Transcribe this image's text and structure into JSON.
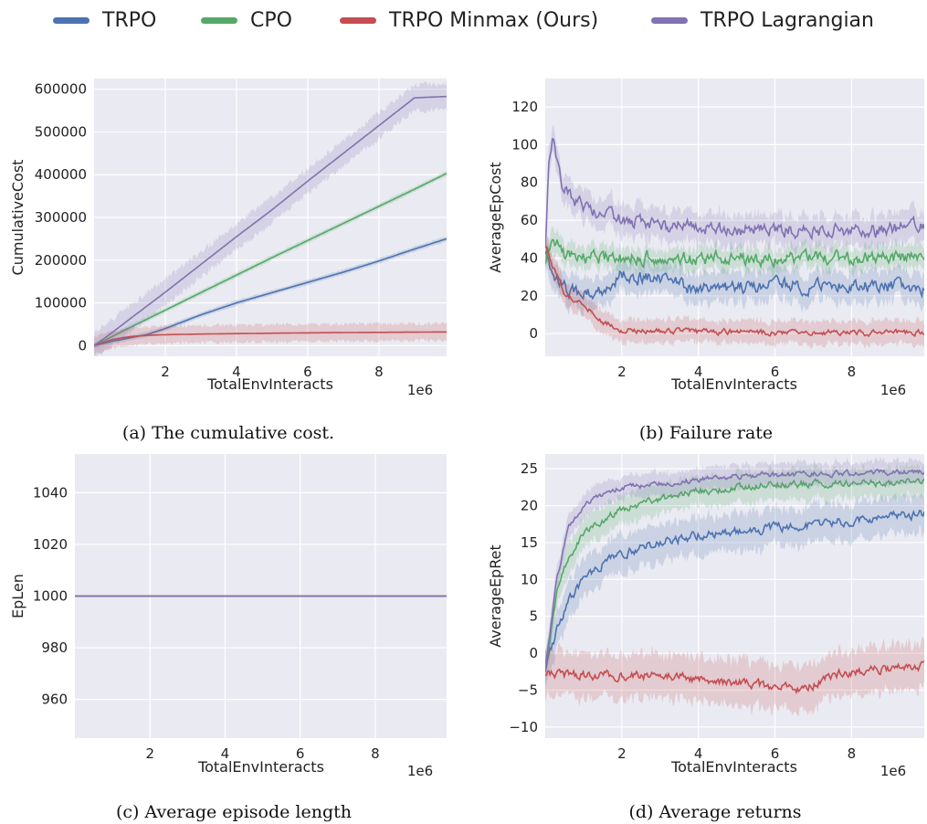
{
  "legend": [
    {
      "name": "TRPO",
      "color": "#4c72b0"
    },
    {
      "name": "CPO",
      "color": "#55a868"
    },
    {
      "name": "TRPO Minmax (Ours)",
      "color": "#c44e52"
    },
    {
      "name": "TRPO Lagrangian",
      "color": "#8172b2"
    }
  ],
  "chart_data": [
    {
      "type": "line",
      "caption": "(a) The cumulative cost.",
      "xlabel": "TotalEnvInteracts",
      "ylabel": "CumulativeCost",
      "x_multiplier": "1e6",
      "xlim": [
        0,
        9.9
      ],
      "ylim": [
        -25000,
        625000
      ],
      "xticks": [
        2,
        4,
        6,
        8
      ],
      "xtick_labels": [
        "2",
        "4",
        "6",
        "8"
      ],
      "yticks": [
        0,
        100000,
        200000,
        300000,
        400000,
        500000,
        600000
      ],
      "ytick_labels": [
        "0",
        "100000",
        "200000",
        "300000",
        "400000",
        "500000",
        "600000"
      ],
      "grid": true,
      "series": [
        {
          "name": "TRPO",
          "color": "#4c72b0",
          "noise": 0,
          "band": 6000,
          "x": [
            0,
            0.5,
            1,
            1.5,
            2,
            2.5,
            3,
            4,
            5,
            6,
            7,
            8,
            9,
            9.9
          ],
          "y": [
            0,
            10000,
            18000,
            26000,
            40000,
            56000,
            72000,
            100000,
            124000,
            148000,
            172000,
            198000,
            226000,
            250000
          ]
        },
        {
          "name": "CPO",
          "color": "#55a868",
          "noise": 0,
          "band": 6000,
          "x": [
            0,
            1,
            2,
            3,
            4,
            5,
            6,
            7,
            8,
            9,
            9.9
          ],
          "y": [
            0,
            42000,
            83000,
            124000,
            165000,
            206000,
            246000,
            286000,
            326000,
            366000,
            403000
          ]
        },
        {
          "name": "TRPO Minmax (Ours)",
          "color": "#c44e52",
          "noise": 0,
          "band": 20000,
          "x": [
            0,
            0.5,
            1,
            1.5,
            2,
            3,
            4,
            5,
            6,
            7,
            8,
            9,
            9.9
          ],
          "y": [
            0,
            14000,
            21000,
            24000,
            25500,
            27000,
            28000,
            29000,
            29800,
            30500,
            31000,
            31500,
            32000
          ]
        },
        {
          "name": "TRPO Lagrangian",
          "color": "#8172b2",
          "noise": 0,
          "band": 30000,
          "x": [
            0,
            0.5,
            1,
            2,
            3,
            4,
            5,
            6,
            7,
            8,
            9,
            9.9
          ],
          "y": [
            0,
            30000,
            62000,
            125000,
            190000,
            255000,
            318000,
            385000,
            450000,
            515000,
            580000,
            583000
          ]
        }
      ]
    },
    {
      "type": "line",
      "caption": "(b) Failure rate",
      "xlabel": "TotalEnvInteracts",
      "ylabel": "AverageEpCost",
      "x_multiplier": "1e6",
      "xlim": [
        0,
        9.9
      ],
      "ylim": [
        -12,
        135
      ],
      "xticks": [
        2,
        4,
        6,
        8
      ],
      "xtick_labels": [
        "2",
        "4",
        "6",
        "8"
      ],
      "yticks": [
        0,
        20,
        40,
        60,
        80,
        100,
        120
      ],
      "ytick_labels": [
        "0",
        "20",
        "40",
        "60",
        "80",
        "100",
        "120"
      ],
      "grid": true,
      "series": [
        {
          "name": "TRPO",
          "color": "#4c72b0",
          "noise": 3,
          "band": 8,
          "x": [
            0,
            0.2,
            0.5,
            1,
            1.5,
            2,
            3,
            4,
            5,
            6,
            7,
            8,
            9,
            9.9
          ],
          "y": [
            45,
            30,
            25,
            20,
            24,
            32,
            28,
            24,
            24,
            26,
            25,
            26,
            25,
            24
          ]
        },
        {
          "name": "CPO",
          "color": "#55a868",
          "noise": 3,
          "band": 6,
          "x": [
            0,
            0.2,
            0.5,
            1,
            2,
            3,
            4,
            5,
            6,
            7,
            8,
            9,
            9.9
          ],
          "y": [
            40,
            52,
            42,
            40,
            40,
            40,
            40,
            40,
            39,
            40,
            40,
            40,
            40
          ]
        },
        {
          "name": "TRPO Minmax (Ours)",
          "color": "#c44e52",
          "noise": 1.2,
          "band": 6,
          "x": [
            0,
            0.2,
            0.5,
            1,
            1.5,
            2,
            3,
            4,
            5,
            6,
            7,
            8,
            9,
            9.9
          ],
          "y": [
            48,
            35,
            22,
            15,
            6,
            2,
            1.5,
            1,
            0.8,
            0.5,
            0.6,
            0.6,
            0.5,
            0.5
          ]
        },
        {
          "name": "TRPO Lagrangian",
          "color": "#8172b2",
          "noise": 3,
          "band": 8,
          "x": [
            0,
            0.1,
            0.2,
            0.4,
            0.7,
            1,
            1.5,
            2,
            3,
            4,
            5,
            6,
            7,
            8,
            9,
            9.9
          ],
          "y": [
            48,
            90,
            103,
            80,
            70,
            67,
            63,
            60,
            57,
            56,
            55,
            55,
            55,
            54,
            55,
            57
          ]
        }
      ]
    },
    {
      "type": "line",
      "caption": "(c) Average episode length",
      "xlabel": "TotalEnvInteracts",
      "ylabel": "EpLen",
      "x_multiplier": "1e6",
      "xlim": [
        0,
        9.9
      ],
      "ylim": [
        945,
        1055
      ],
      "xticks": [
        2,
        4,
        6,
        8
      ],
      "xtick_labels": [
        "2",
        "4",
        "6",
        "8"
      ],
      "yticks": [
        960,
        980,
        1000,
        1020,
        1040
      ],
      "ytick_labels": [
        "960",
        "980",
        "1000",
        "1020",
        "1040"
      ],
      "grid": true,
      "series": [
        {
          "name": "TRPO",
          "color": "#4c72b0",
          "noise": 0,
          "band": 0,
          "x": [
            0,
            9.9
          ],
          "y": [
            1000,
            1000
          ]
        },
        {
          "name": "CPO",
          "color": "#55a868",
          "noise": 0,
          "band": 0,
          "x": [
            0,
            9.9
          ],
          "y": [
            1000,
            1000
          ]
        },
        {
          "name": "TRPO Minmax (Ours)",
          "color": "#c44e52",
          "noise": 0,
          "band": 0,
          "x": [
            0,
            9.9
          ],
          "y": [
            1000,
            1000
          ]
        },
        {
          "name": "TRPO Lagrangian",
          "color": "#8172b2",
          "noise": 0,
          "band": 0,
          "x": [
            0,
            9.9
          ],
          "y": [
            1000,
            1000
          ]
        }
      ]
    },
    {
      "type": "line",
      "caption": "(d) Average returns",
      "xlabel": "TotalEnvInteracts",
      "ylabel": "AverageEpRet",
      "x_multiplier": "1e6",
      "xlim": [
        0,
        9.9
      ],
      "ylim": [
        -11.5,
        27
      ],
      "xticks": [
        2,
        4,
        6,
        8
      ],
      "xtick_labels": [
        "2",
        "4",
        "6",
        "8"
      ],
      "yticks": [
        -10,
        -5,
        0,
        5,
        10,
        15,
        20,
        25
      ],
      "ytick_labels": [
        "−10",
        "−5",
        "0",
        "5",
        "10",
        "15",
        "20",
        "25"
      ],
      "grid": true,
      "series": [
        {
          "name": "TRPO",
          "color": "#4c72b0",
          "noise": 0.5,
          "band": 2.5,
          "x": [
            0,
            0.3,
            0.6,
            1,
            1.5,
            2,
            3,
            4,
            5,
            6,
            7,
            8,
            9,
            9.9
          ],
          "y": [
            -2,
            3,
            7,
            10,
            12,
            13.5,
            15,
            16,
            16.5,
            17,
            17.5,
            18,
            18.5,
            19
          ]
        },
        {
          "name": "CPO",
          "color": "#55a868",
          "noise": 0.4,
          "band": 2,
          "x": [
            0,
            0.3,
            0.6,
            1,
            1.5,
            2,
            3,
            4,
            5,
            6,
            7,
            8,
            9,
            9.9
          ],
          "y": [
            -2,
            8,
            13,
            16,
            18,
            19.5,
            21,
            22,
            22.5,
            22.8,
            23,
            23,
            23.1,
            23.2
          ]
        },
        {
          "name": "TRPO Minmax (Ours)",
          "color": "#c44e52",
          "noise": 0.5,
          "band": 3,
          "x": [
            0,
            0.5,
            1,
            2,
            3,
            4,
            5,
            6,
            6.7,
            7.5,
            8,
            9,
            9.9
          ],
          "y": [
            -2.5,
            -3,
            -3,
            -3,
            -3,
            -3.5,
            -4,
            -4.5,
            -5,
            -3,
            -2.5,
            -2,
            -1.5
          ]
        },
        {
          "name": "TRPO Lagrangian",
          "color": "#8172b2",
          "noise": 0.3,
          "band": 1.5,
          "x": [
            0,
            0.3,
            0.6,
            1,
            1.5,
            2,
            3,
            4,
            5,
            6,
            7,
            8,
            9,
            9.9
          ],
          "y": [
            -2,
            10,
            17,
            20,
            21.5,
            22.5,
            23,
            23.5,
            24,
            24.2,
            24.3,
            24.4,
            24.5,
            24.5
          ]
        }
      ]
    }
  ]
}
